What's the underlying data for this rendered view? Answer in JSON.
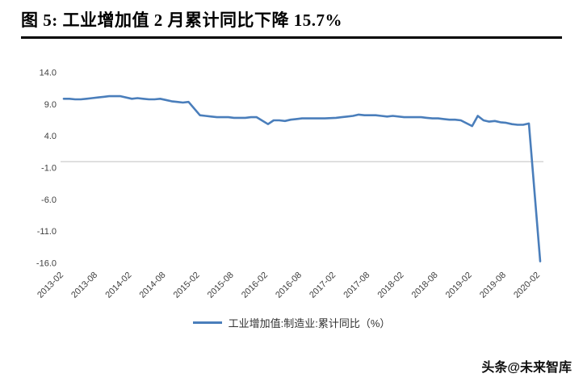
{
  "title": "图  5:  工业增加值 2 月累计同比下降 15.7%",
  "watermark": "头条@未来智库",
  "chart_data": {
    "type": "line",
    "title": "工业增加值 2 月累计同比下降 15.7%",
    "ylim": [
      -16,
      14
    ],
    "yticks": [
      14,
      9,
      4,
      -1,
      -6,
      -11,
      -16
    ],
    "xticks": [
      "2013-02",
      "2013-08",
      "2014-02",
      "2014-08",
      "2015-02",
      "2015-08",
      "2016-02",
      "2016-08",
      "2017-02",
      "2017-08",
      "2018-02",
      "2018-08",
      "2019-02",
      "2019-08",
      "2020-02"
    ],
    "grid": false,
    "legend_position": "bottom",
    "axis_color": "#bfbfbf",
    "series": [
      {
        "name": "工业增加值:制造业:累计同比（%）",
        "color": "#4a7ebb",
        "points": [
          [
            "2013-02",
            9.9
          ],
          [
            "2013-03",
            9.9
          ],
          [
            "2013-04",
            9.8
          ],
          [
            "2013-05",
            9.8
          ],
          [
            "2013-06",
            9.9
          ],
          [
            "2013-07",
            10.0
          ],
          [
            "2013-08",
            10.1
          ],
          [
            "2013-09",
            10.2
          ],
          [
            "2013-10",
            10.3
          ],
          [
            "2013-11",
            10.3
          ],
          [
            "2013-12",
            10.3
          ],
          [
            "2014-02",
            9.9
          ],
          [
            "2014-03",
            10.0
          ],
          [
            "2014-04",
            9.9
          ],
          [
            "2014-05",
            9.8
          ],
          [
            "2014-06",
            9.8
          ],
          [
            "2014-07",
            9.9
          ],
          [
            "2014-08",
            9.7
          ],
          [
            "2014-09",
            9.5
          ],
          [
            "2014-10",
            9.4
          ],
          [
            "2014-11",
            9.3
          ],
          [
            "2014-12",
            9.4
          ],
          [
            "2015-02",
            7.3
          ],
          [
            "2015-03",
            7.2
          ],
          [
            "2015-04",
            7.1
          ],
          [
            "2015-05",
            7.0
          ],
          [
            "2015-06",
            7.0
          ],
          [
            "2015-07",
            7.0
          ],
          [
            "2015-08",
            6.9
          ],
          [
            "2015-09",
            6.9
          ],
          [
            "2015-10",
            6.9
          ],
          [
            "2015-11",
            7.0
          ],
          [
            "2015-12",
            7.0
          ],
          [
            "2016-02",
            5.9
          ],
          [
            "2016-03",
            6.5
          ],
          [
            "2016-04",
            6.5
          ],
          [
            "2016-05",
            6.4
          ],
          [
            "2016-06",
            6.6
          ],
          [
            "2016-07",
            6.7
          ],
          [
            "2016-08",
            6.8
          ],
          [
            "2016-09",
            6.8
          ],
          [
            "2016-10",
            6.8
          ],
          [
            "2016-11",
            6.8
          ],
          [
            "2016-12",
            6.8
          ],
          [
            "2017-02",
            6.9
          ],
          [
            "2017-03",
            7.0
          ],
          [
            "2017-04",
            7.1
          ],
          [
            "2017-05",
            7.2
          ],
          [
            "2017-06",
            7.4
          ],
          [
            "2017-07",
            7.3
          ],
          [
            "2017-08",
            7.3
          ],
          [
            "2017-09",
            7.3
          ],
          [
            "2017-10",
            7.2
          ],
          [
            "2017-11",
            7.1
          ],
          [
            "2017-12",
            7.2
          ],
          [
            "2018-02",
            7.0
          ],
          [
            "2018-03",
            7.0
          ],
          [
            "2018-04",
            7.0
          ],
          [
            "2018-05",
            7.0
          ],
          [
            "2018-06",
            6.9
          ],
          [
            "2018-07",
            6.8
          ],
          [
            "2018-08",
            6.8
          ],
          [
            "2018-09",
            6.7
          ],
          [
            "2018-10",
            6.6
          ],
          [
            "2018-11",
            6.6
          ],
          [
            "2018-12",
            6.5
          ],
          [
            "2019-02",
            5.6
          ],
          [
            "2019-03",
            7.2
          ],
          [
            "2019-04",
            6.5
          ],
          [
            "2019-05",
            6.3
          ],
          [
            "2019-06",
            6.4
          ],
          [
            "2019-07",
            6.2
          ],
          [
            "2019-08",
            6.1
          ],
          [
            "2019-09",
            5.9
          ],
          [
            "2019-10",
            5.8
          ],
          [
            "2019-11",
            5.8
          ],
          [
            "2019-12",
            6.0
          ],
          [
            "2020-02",
            -15.7
          ]
        ]
      }
    ]
  }
}
